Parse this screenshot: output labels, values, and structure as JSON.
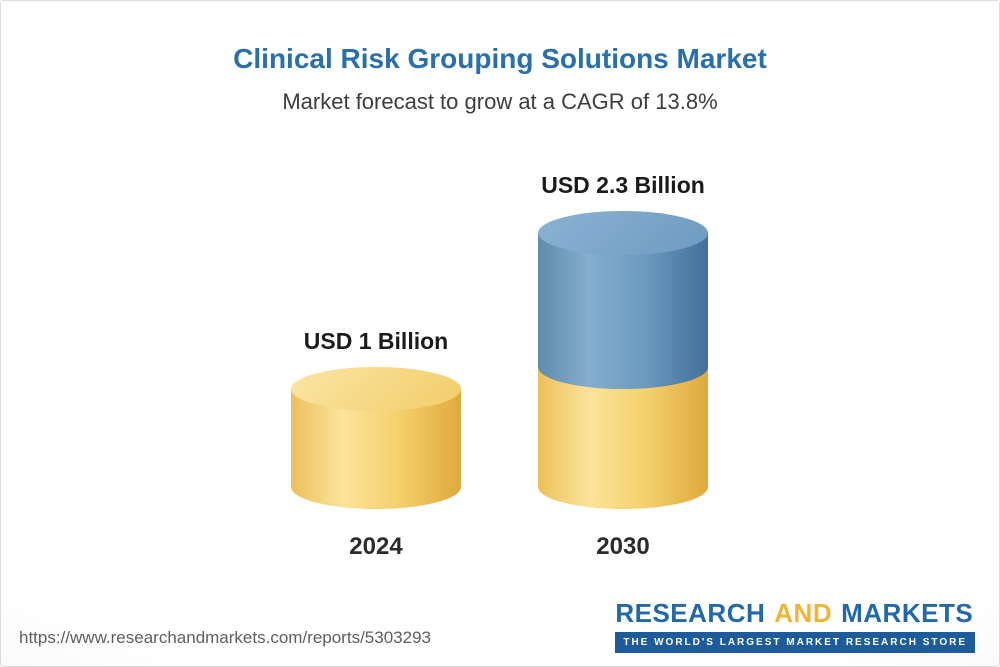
{
  "page": {
    "title": "Clinical Risk Grouping Solutions Market",
    "subtitle": "Market forecast to grow at a CAGR of 13.8%"
  },
  "chart_data": {
    "type": "bar",
    "title": "Clinical Risk Grouping Solutions Market",
    "subtitle": "Market forecast to grow at a CAGR of 13.8%",
    "cagr_percent": 13.8,
    "unit": "USD Billion",
    "categories": [
      "2024",
      "2030"
    ],
    "values": [
      1,
      2.3
    ],
    "value_labels": [
      "USD 1 Billion",
      "USD 2.3 Billion"
    ],
    "legend": "none",
    "grid": false,
    "bars": [
      {
        "category": "2024",
        "value": 1,
        "label": "USD 1 Billion",
        "segments": [
          {
            "value": 1,
            "palette": "gold"
          }
        ]
      },
      {
        "category": "2030",
        "value": 2.3,
        "label": "USD 2.3 Billion",
        "segments": [
          {
            "value": 1,
            "palette": "gold"
          },
          {
            "value": 1.3,
            "palette": "blue"
          }
        ]
      }
    ]
  },
  "footer": {
    "url": "https://www.researchandmarkets.com/reports/5303293",
    "logo": {
      "word1": "RESEARCH",
      "word2": "AND",
      "word3": "MARKETS",
      "tagline": "THE WORLD'S LARGEST MARKET RESEARCH STORE"
    }
  },
  "colors": {
    "title_blue": "#2a6fad",
    "subtitle_gray": "#3d3d3d",
    "label_dark": "#1b1b1b",
    "url_gray": "#5f5f5f",
    "logo_blue": "#2268ab",
    "logo_gold": "#f1b434",
    "tagline_bg": "#1d5b9b",
    "palettes": {
      "gold": {
        "edge": "#ecc059",
        "highlight": "#fce39b",
        "mid": "#f5d26f",
        "shadow": "#dfa93c",
        "cap_light": "#fbe6a5",
        "cap_dark": "#f2cd68"
      },
      "blue": {
        "edge": "#5f8cab",
        "highlight": "#84adce",
        "mid": "#6c9ac0",
        "shadow": "#42709a",
        "cap_light": "#8cb2d2",
        "cap_dark": "#6d9bc1"
      }
    }
  }
}
